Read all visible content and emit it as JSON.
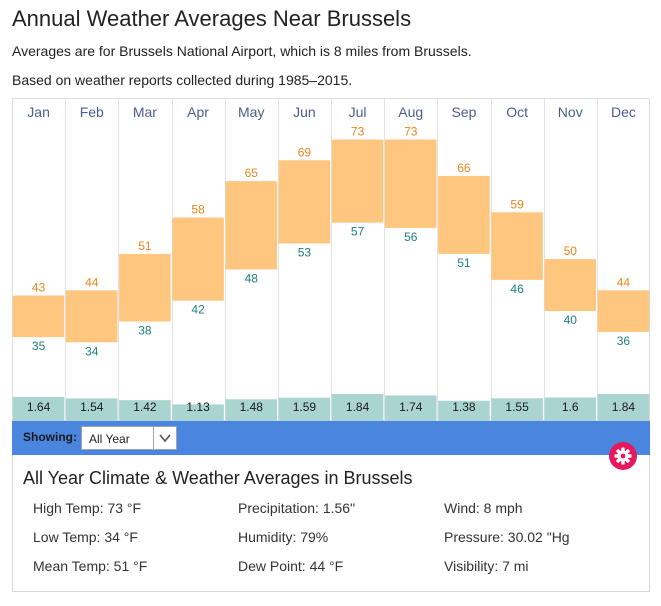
{
  "header": {
    "title": "Annual Weather Averages Near Brussels",
    "subtitle_1": "Averages are for Brussels National Airport, which is 8 miles from Brussels.",
    "subtitle_2": "Based on weather reports collected during 1985–2015."
  },
  "colors": {
    "temp_range_fill": "#ffc680",
    "high_label": "#e8861b",
    "low_label": "#1e8082",
    "precip_fill": "#a9d4d0",
    "month_label": "#4a5d8c",
    "toolbar_bg": "#4a86e0",
    "gear_button": "#e8185e"
  },
  "chart_data": {
    "type": "bar",
    "subtype": "floating-range",
    "title": "",
    "categories": [
      "Jan",
      "Feb",
      "Mar",
      "Apr",
      "May",
      "Jun",
      "Jul",
      "Aug",
      "Sep",
      "Oct",
      "Nov",
      "Dec"
    ],
    "series": [
      {
        "name": "",
        "values": [
          43,
          44,
          51,
          58,
          65,
          69,
          73,
          73,
          66,
          59,
          50,
          44
        ]
      },
      {
        "name": "",
        "values": [
          35,
          34,
          38,
          42,
          48,
          53,
          57,
          56,
          51,
          46,
          40,
          36
        ]
      }
    ],
    "precipitation": [
      1.64,
      1.54,
      1.42,
      1.13,
      1.48,
      1.59,
      1.84,
      1.74,
      1.38,
      1.55,
      1.6,
      1.84
    ],
    "precip_labels": [
      "1.64",
      "1.54",
      "1.42",
      "1.13",
      "1.48",
      "1.59",
      "1.84",
      "1.74",
      "1.38",
      "1.55",
      "1.6",
      "1.84"
    ],
    "legend": "none",
    "grid": "vertical-lines"
  },
  "toolbar": {
    "showing_label": "Showing:",
    "selected": "All Year"
  },
  "summary": {
    "title": "All Year Climate & Weather Averages in Brussels",
    "stats": [
      {
        "label": "High Temp: 73 °F"
      },
      {
        "label": "Precipitation: 1.56\""
      },
      {
        "label": "Wind: 8 mph"
      },
      {
        "label": "Low Temp: 34 °F"
      },
      {
        "label": "Humidity: 79%"
      },
      {
        "label": "Pressure: 30.02 \"Hg"
      },
      {
        "label": "Mean Temp: 51 °F"
      },
      {
        "label": "Dew Point: 44 °F"
      },
      {
        "label": "Visibility: 7 mi"
      }
    ]
  }
}
